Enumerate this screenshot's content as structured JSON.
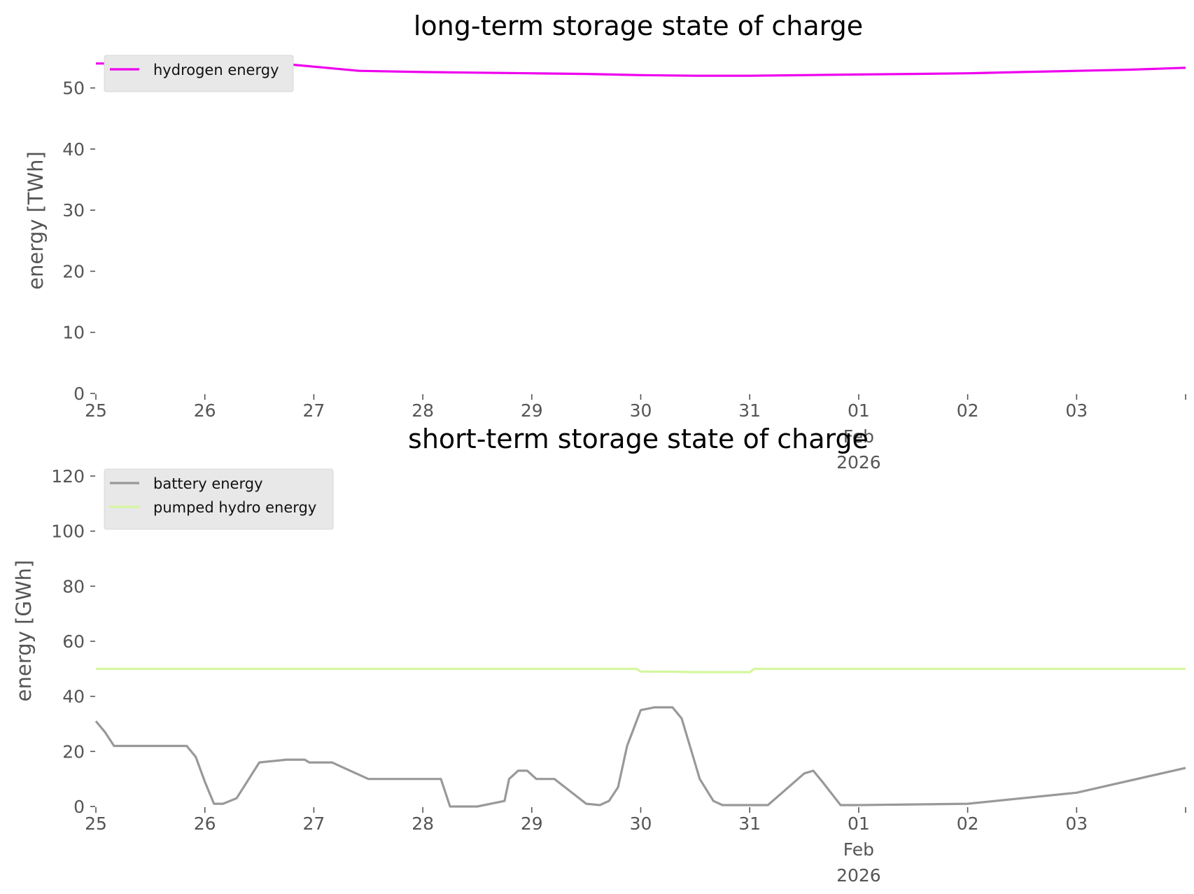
{
  "chart_data": [
    {
      "type": "line",
      "title": "long-term storage state of charge",
      "xlabel": "",
      "ylabel": "energy [TWh]",
      "ylim": [
        0,
        55
      ],
      "yticks": [
        0,
        10,
        20,
        30,
        40,
        50
      ],
      "xlim": [
        "2026-01-25",
        "2026-02-04"
      ],
      "xtick_labels": [
        {
          "x": "2026-01-25",
          "lines": [
            "25"
          ]
        },
        {
          "x": "2026-01-26",
          "lines": [
            "26"
          ]
        },
        {
          "x": "2026-01-27",
          "lines": [
            "27"
          ]
        },
        {
          "x": "2026-01-28",
          "lines": [
            "28"
          ]
        },
        {
          "x": "2026-01-29",
          "lines": [
            "29"
          ]
        },
        {
          "x": "2026-01-30",
          "lines": [
            "30"
          ]
        },
        {
          "x": "2026-01-31",
          "lines": [
            "31"
          ]
        },
        {
          "x": "2026-02-01",
          "lines": [
            "01",
            "Feb",
            "2026"
          ]
        },
        {
          "x": "2026-02-02",
          "lines": [
            "02"
          ]
        },
        {
          "x": "2026-02-03",
          "lines": [
            "03"
          ]
        }
      ],
      "grid": false,
      "legend_position": "top-left",
      "series": [
        {
          "name": "hydrogen energy",
          "color": "#ee00ee",
          "x": [
            "2026-01-25T00:00",
            "2026-01-26T00:00",
            "2026-01-26T18:00",
            "2026-01-27T10:00",
            "2026-01-28T00:00",
            "2026-01-28T12:00",
            "2026-01-29T00:00",
            "2026-01-29T12:00",
            "2026-01-30T00:00",
            "2026-01-30T12:00",
            "2026-01-31T00:00",
            "2026-01-31T12:00",
            "2026-02-01T00:00",
            "2026-02-01T12:00",
            "2026-02-02T00:00",
            "2026-02-02T12:00",
            "2026-02-03T00:00",
            "2026-02-03T12:00",
            "2026-02-04T00:00"
          ],
          "values": [
            54.0,
            54.0,
            53.9,
            52.8,
            52.6,
            52.5,
            52.4,
            52.3,
            52.1,
            52.0,
            52.0,
            52.1,
            52.2,
            52.3,
            52.4,
            52.6,
            52.8,
            53.0,
            53.3
          ]
        }
      ]
    },
    {
      "type": "line",
      "title": "short-term storage state of charge",
      "xlabel": "",
      "ylabel": "energy [GWh]",
      "ylim": [
        0,
        120
      ],
      "yticks": [
        0,
        20,
        40,
        60,
        80,
        100,
        120
      ],
      "xlim": [
        "2026-01-25",
        "2026-02-04"
      ],
      "xtick_labels": [
        {
          "x": "2026-01-25",
          "lines": [
            "25"
          ]
        },
        {
          "x": "2026-01-26",
          "lines": [
            "26"
          ]
        },
        {
          "x": "2026-01-27",
          "lines": [
            "27"
          ]
        },
        {
          "x": "2026-01-28",
          "lines": [
            "28"
          ]
        },
        {
          "x": "2026-01-29",
          "lines": [
            "29"
          ]
        },
        {
          "x": "2026-01-30",
          "lines": [
            "30"
          ]
        },
        {
          "x": "2026-01-31",
          "lines": [
            "31"
          ]
        },
        {
          "x": "2026-02-01",
          "lines": [
            "01",
            "Feb",
            "2026"
          ]
        },
        {
          "x": "2026-02-02",
          "lines": [
            "02"
          ]
        },
        {
          "x": "2026-02-03",
          "lines": [
            "03"
          ]
        }
      ],
      "grid": false,
      "legend_position": "top-left",
      "series": [
        {
          "name": "battery energy",
          "color": "#999999",
          "x": [
            "2026-01-25T00:00",
            "2026-01-25T02:00",
            "2026-01-25T04:00",
            "2026-01-25T12:00",
            "2026-01-25T20:00",
            "2026-01-25T22:00",
            "2026-01-26T00:00",
            "2026-01-26T02:00",
            "2026-01-26T04:00",
            "2026-01-26T07:00",
            "2026-01-26T12:00",
            "2026-01-26T18:00",
            "2026-01-26T20:00",
            "2026-01-26T22:00",
            "2026-01-26T23:00",
            "2026-01-27T00:00",
            "2026-01-27T04:00",
            "2026-01-27T12:00",
            "2026-01-28T00:00",
            "2026-01-28T04:00",
            "2026-01-28T06:00",
            "2026-01-28T08:00",
            "2026-01-28T10:00",
            "2026-01-28T12:00",
            "2026-01-28T18:00",
            "2026-01-28T19:00",
            "2026-01-28T21:00",
            "2026-01-28T23:00",
            "2026-01-29T01:00",
            "2026-01-29T03:00",
            "2026-01-29T05:00",
            "2026-01-29T12:00",
            "2026-01-29T15:00",
            "2026-01-29T17:00",
            "2026-01-29T19:00",
            "2026-01-29T21:00",
            "2026-01-30T00:00",
            "2026-01-30T03:00",
            "2026-01-30T06:00",
            "2026-01-30T07:00",
            "2026-01-30T09:00",
            "2026-01-30T11:00",
            "2026-01-30T13:00",
            "2026-01-30T16:00",
            "2026-01-30T18:00",
            "2026-01-30T20:00",
            "2026-01-30T22:00",
            "2026-01-31T00:00",
            "2026-01-31T02:00",
            "2026-01-31T04:00",
            "2026-01-31T12:00",
            "2026-01-31T14:00",
            "2026-01-31T16:00",
            "2026-01-31T20:00",
            "2026-02-01T00:00",
            "2026-02-02T00:00",
            "2026-02-03T00:00",
            "2026-02-04T00:00"
          ],
          "values": [
            31,
            27,
            22,
            22,
            22,
            18,
            9,
            1,
            1,
            3,
            16,
            17,
            17,
            17,
            16,
            16,
            16,
            10,
            10,
            10,
            0,
            0,
            0,
            0,
            2,
            10,
            13,
            13,
            10,
            10,
            10,
            1,
            0.5,
            2,
            7,
            22,
            35,
            36,
            36,
            36,
            32,
            21,
            10,
            2,
            0.5,
            0.5,
            0.5,
            0.5,
            0.5,
            0.5,
            12,
            13,
            9,
            0.5,
            0.5,
            1,
            5,
            14
          ]
        },
        {
          "name": "pumped hydro energy",
          "color": "#d4f79e",
          "x": [
            "2026-01-25T00:00",
            "2026-01-29T23:00",
            "2026-01-30T00:00",
            "2026-01-30T06:00",
            "2026-01-30T12:00",
            "2026-01-30T18:00",
            "2026-01-31T00:00",
            "2026-01-31T01:00",
            "2026-02-04T00:00"
          ],
          "values": [
            50,
            50,
            49,
            49,
            48.8,
            48.8,
            48.8,
            50,
            50
          ]
        }
      ]
    }
  ]
}
